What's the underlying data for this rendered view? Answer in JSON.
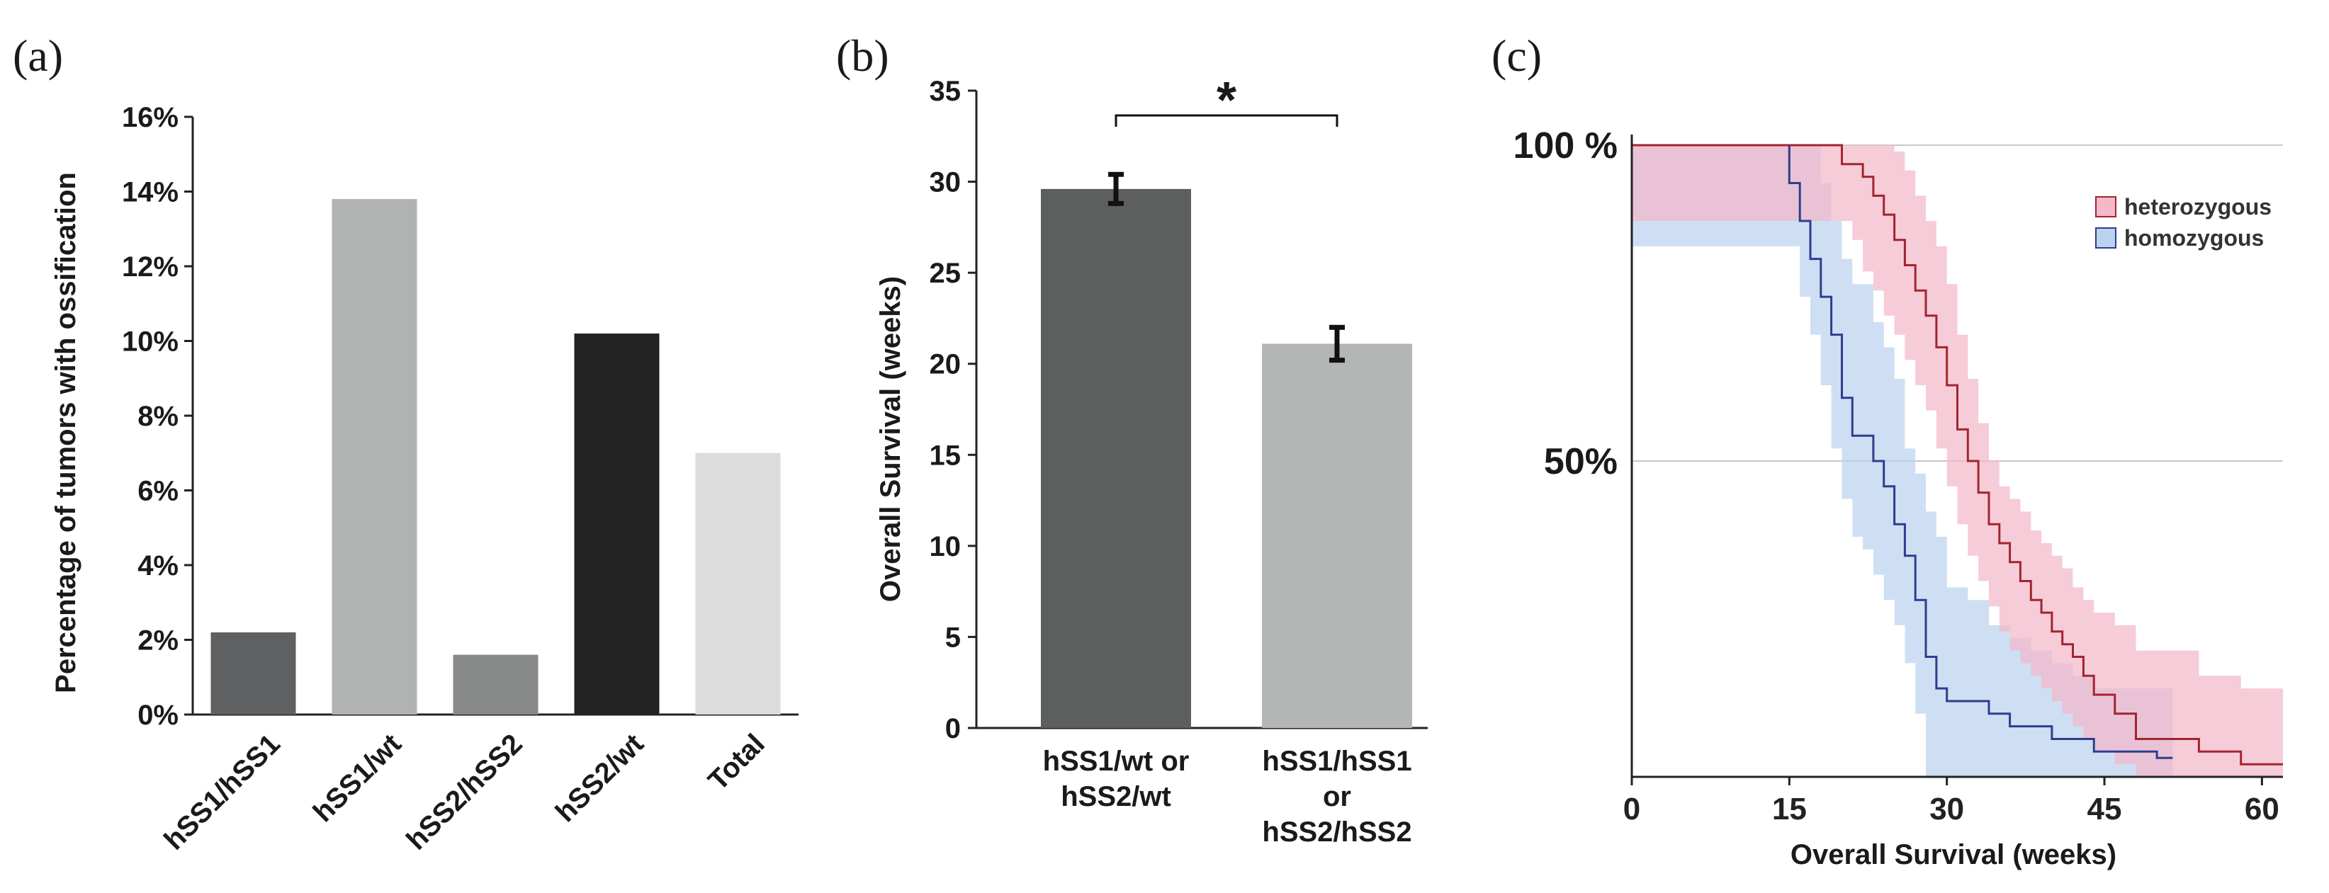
{
  "panels": {
    "a": "(a)",
    "b": "(b)",
    "c": "(c)"
  },
  "colors": {
    "hetero_line": "#a3242f",
    "hetero_band": "#f3b9c9",
    "homo_line": "#2e3d8f",
    "homo_band": "#bcd3ef",
    "grid": "#c8c8c8",
    "axis": "#222222"
  },
  "chart_data": [
    {
      "id": "a",
      "type": "bar",
      "title": "",
      "xlabel": "",
      "ylabel": "Percentage of tumors with ossification",
      "ylim": [
        0,
        16
      ],
      "ytick_values": [
        0,
        2,
        4,
        6,
        8,
        10,
        12,
        14,
        16
      ],
      "yticks": [
        "0%",
        "2%",
        "4%",
        "6%",
        "8%",
        "10%",
        "12%",
        "14%",
        "16%"
      ],
      "categories": [
        "hSS1/hSS1",
        "hSS1/wt",
        "hSS2/hSS2",
        "hSS2/wt",
        "Total"
      ],
      "values": [
        2.2,
        13.8,
        1.6,
        10.2,
        7.0
      ],
      "bar_colors": [
        "#5f6061",
        "#b1b2b2",
        "#888989",
        "#232323",
        "#dcdcdc"
      ]
    },
    {
      "id": "b",
      "type": "bar",
      "title": "",
      "xlabel": "",
      "ylabel": "Overall Survival (weeks)",
      "ylim": [
        0,
        35
      ],
      "ytick_values": [
        0,
        5,
        10,
        15,
        20,
        25,
        30,
        35
      ],
      "yticks": [
        "0",
        "5",
        "10",
        "15",
        "20",
        "25",
        "30",
        "35"
      ],
      "categories": [
        [
          "hSS1/wt or",
          "hSS2/wt"
        ],
        [
          "hSS1/hSS1",
          "or",
          "hSS2/hSS2"
        ]
      ],
      "values": [
        29.6,
        21.1
      ],
      "errors": [
        0.8,
        0.9
      ],
      "bar_colors": [
        "#5d5e5e",
        "#b4b5b5"
      ],
      "significance": "*"
    },
    {
      "id": "c",
      "type": "line",
      "title": "",
      "xlabel": "Overall Survival (weeks)",
      "ylabel": "",
      "xlim": [
        0,
        62
      ],
      "ylim": [
        0,
        100
      ],
      "xtick_values": [
        0,
        15,
        30,
        45,
        60
      ],
      "xticks": [
        "0",
        "15",
        "30",
        "45",
        "60"
      ],
      "ytick_values": [
        100,
        50
      ],
      "yticks": [
        "100 %",
        "50%"
      ],
      "legend": [
        "heterozygous",
        "homozygous"
      ],
      "legend_position": "top-right",
      "series": [
        {
          "name": "heterozygous",
          "x": [
            0,
            19,
            20,
            21,
            22,
            23,
            24,
            25,
            26,
            27,
            28,
            29,
            30,
            31,
            32,
            33,
            34,
            35,
            36,
            37,
            38,
            39,
            40,
            41,
            42,
            43,
            44,
            46,
            48,
            51,
            54,
            56,
            58,
            62
          ],
          "y": [
            100,
            100,
            97,
            97,
            95,
            92,
            89,
            85,
            81,
            77,
            73,
            68,
            62,
            55,
            50,
            45,
            40,
            37,
            34,
            31,
            28,
            26,
            23,
            21,
            19,
            16,
            13,
            10,
            6,
            6,
            4,
            4,
            2,
            2
          ],
          "lower": [
            88,
            88,
            88,
            85,
            80,
            77,
            73,
            70,
            66,
            62,
            58,
            52,
            46,
            40,
            35,
            31,
            27,
            23,
            20,
            18,
            16,
            14,
            12,
            10,
            8,
            6,
            4,
            2,
            0,
            0,
            0,
            0,
            0,
            0
          ],
          "upper": [
            100,
            100,
            100,
            100,
            100,
            100,
            100,
            99,
            96,
            92,
            88,
            84,
            78,
            70,
            63,
            56,
            50,
            46,
            44,
            42,
            39,
            37,
            35,
            33,
            30,
            28,
            26,
            24,
            20,
            20,
            16,
            16,
            14,
            14
          ]
        },
        {
          "name": "homozygous",
          "x": [
            0,
            14,
            15,
            16,
            17,
            18,
            19,
            20,
            21,
            22,
            23,
            24,
            25,
            26,
            27,
            28,
            29,
            30,
            32,
            34,
            36,
            38,
            40,
            42,
            44,
            46,
            48,
            50,
            51.5
          ],
          "y": [
            100,
            100,
            94,
            88,
            82,
            76,
            70,
            60,
            54,
            54,
            50,
            46,
            40,
            35,
            28,
            19,
            14,
            12,
            12,
            10,
            8,
            8,
            6,
            6,
            4,
            4,
            4,
            3,
            3
          ],
          "lower": [
            84,
            84,
            84,
            76,
            70,
            62,
            52,
            44,
            38,
            36,
            32,
            28,
            24,
            18,
            10,
            0,
            0,
            0,
            0,
            0,
            0,
            0,
            0,
            0,
            0,
            0,
            0,
            0,
            0
          ],
          "upper": [
            100,
            100,
            100,
            100,
            100,
            94,
            88,
            82,
            78,
            78,
            72,
            68,
            63,
            52,
            48,
            42,
            38,
            30,
            28,
            24,
            22,
            20,
            18,
            16,
            14,
            14,
            14,
            14,
            14
          ]
        }
      ]
    }
  ]
}
